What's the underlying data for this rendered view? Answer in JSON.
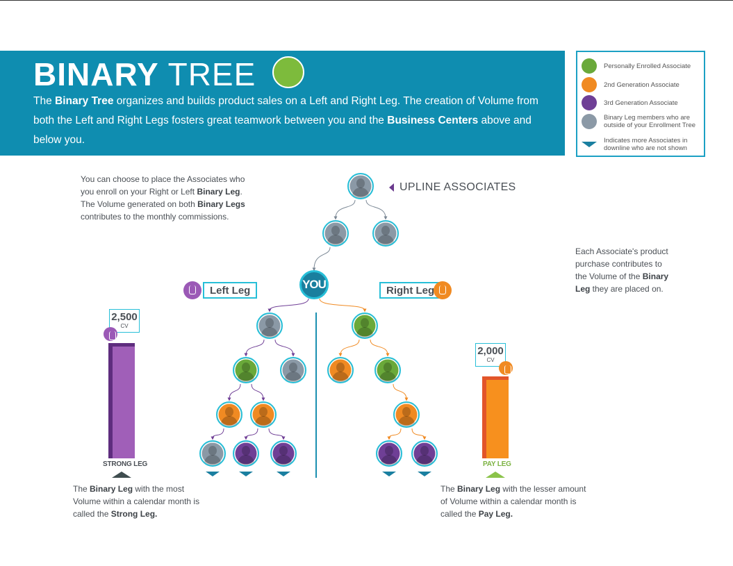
{
  "header": {
    "title_bold": "BINARY",
    "title_light": "TREE",
    "intro_parts": [
      {
        "t": "The ",
        "b": false
      },
      {
        "t": "Binary Tree",
        "b": true
      },
      {
        "t": " organizes and builds product sales on a Left and Right Leg. The creation of Volume from both the Left and Right Legs fosters great teamwork between you and the ",
        "b": false
      },
      {
        "t": "Business Centers",
        "b": true
      },
      {
        "t": " above and below you.",
        "b": false
      }
    ]
  },
  "legend": {
    "items": [
      {
        "type": "green",
        "label": "Personally Enrolled Associate"
      },
      {
        "type": "orange",
        "label": "2nd Generation Associate"
      },
      {
        "type": "purple",
        "label": "3rd Generation Associate"
      },
      {
        "type": "gray",
        "label": "Binary Leg members who are outside of your Enrollment Tree"
      },
      {
        "type": "triangle",
        "label": "Indicates more Associates in downline who are not shown"
      }
    ]
  },
  "notes": {
    "placement": "You can choose to place the Associates who you enroll on your Right or Left Binary Leg. The Volume generated on both Binary Legs contributes to the monthly commissions.",
    "purchase": "Each Associate's product purchase contributes to the Volume of the Binary Leg they are placed on.",
    "strong": "The Binary Leg with the most Volume within a calendar month is called the Strong Leg.",
    "pay": "The Binary Leg with the lesser amount of Volume within a calendar month is called the Pay Leg."
  },
  "tree": {
    "upline_label": "UPLINE ASSOCIATES",
    "you_label": "YOU",
    "left_label": "Left Leg",
    "right_label": "Right Leg",
    "upline": [
      "gray",
      "gray",
      "gray"
    ],
    "left": [
      "gray",
      "green",
      "gray",
      "orange",
      "orange",
      "gray",
      "purple",
      "purple"
    ],
    "right": [
      "green",
      "orange",
      "green",
      "orange",
      "purple",
      "purple"
    ]
  },
  "legs": {
    "strong": {
      "value": 2500,
      "value_label": "2,500",
      "unit": "CV",
      "name": "STRONG LEG"
    },
    "pay": {
      "value": 2000,
      "value_label": "2,000",
      "unit": "CV",
      "name": "PAY LEG"
    }
  },
  "colors": {
    "banner": "#0f8db0",
    "green": "#6aa93a",
    "orange": "#f08a22",
    "purple": "#6f3f96",
    "gray": "#8b99a6",
    "cyan": "#27bfd8"
  }
}
